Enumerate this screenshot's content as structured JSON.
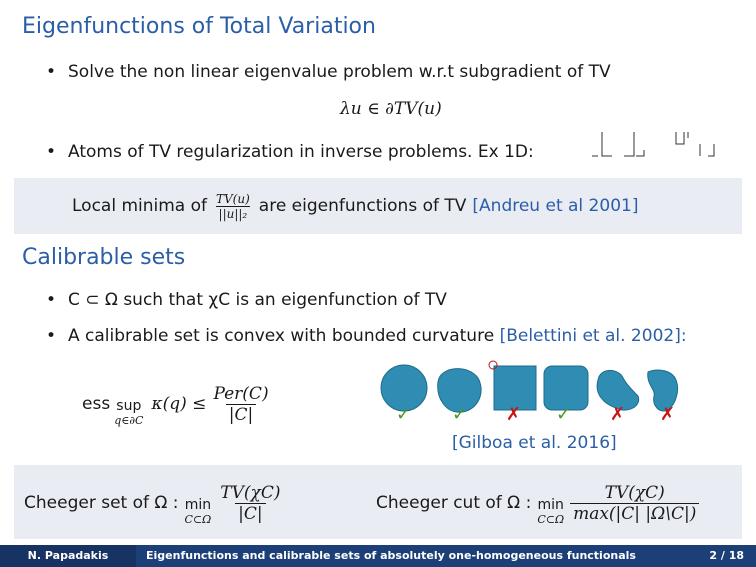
{
  "section1": {
    "title": "Eigenfunctions of Total Variation",
    "bullet1": "Solve the non linear eigenvalue problem w.r.t subgradient of TV",
    "equation": "λu ∈ ∂TV(u)",
    "bullet2": "Atoms of TV regularization in inverse problems. Ex 1D:",
    "box": {
      "pre": "Local minima of",
      "frac_num": "TV(u)",
      "frac_den": "||u||₂",
      "post": "are eigenfunctions of TV",
      "cite": "[Andreu et al 2001]"
    }
  },
  "section2": {
    "title": "Calibrable sets",
    "bullet1": "C ⊂ Ω such that χC is an eigenfunction of TV",
    "bullet2": "A calibrable set is convex with bounded curvature",
    "bullet2_cite": "[Belettini et al. 2002]:",
    "formula": {
      "ess": "ess",
      "sup": "sup",
      "sub": "q∈∂C",
      "kappa": "κ(q) ≤",
      "num": "Per(C)",
      "den": "|C|"
    },
    "shapes_cite": "[Gilboa et al. 2016]",
    "marks": [
      "✓",
      "✓",
      "✗",
      "✓",
      "✗",
      "✗"
    ],
    "colors": {
      "shape": "#2f8db4",
      "check": "#4a9a1e",
      "cross": "#cc1111"
    }
  },
  "bottom_box": {
    "cheeger_set_label": "Cheeger set of Ω :",
    "cheeger_set_min": "min",
    "cheeger_set_sub": "C⊂Ω",
    "cheeger_set_num": "TV(χC)",
    "cheeger_set_den": "|C|",
    "cheeger_cut_label": "Cheeger cut of Ω :",
    "cheeger_cut_min": "min",
    "cheeger_cut_sub": "C⊂Ω",
    "cheeger_cut_num": "TV(χC)",
    "cheeger_cut_den": "max(|C| |Ω\\C|)"
  },
  "footer": {
    "author": "N. Papadakis",
    "talk_title": "Eigenfunctions and calibrable sets of absolutely one-homogeneous functionals",
    "page": "2 / 18"
  }
}
